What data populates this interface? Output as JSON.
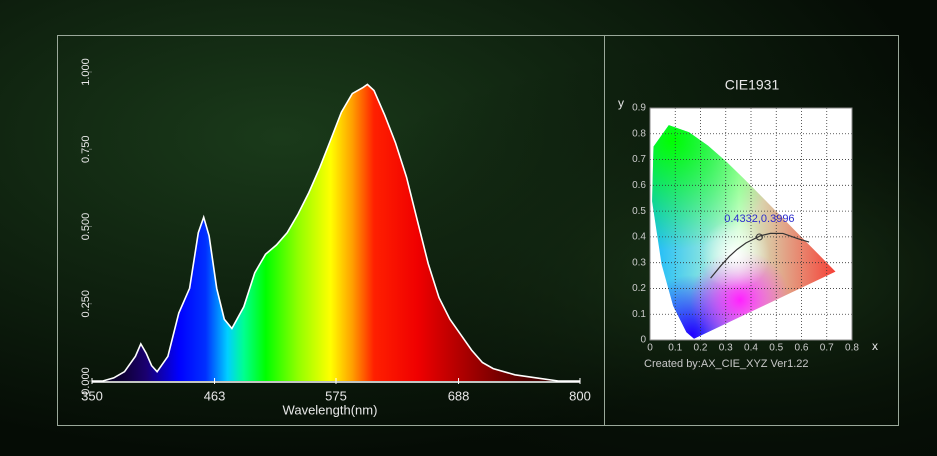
{
  "chart_data": [
    {
      "type": "area",
      "x_label": "Wavelength(nm)",
      "x": [
        350,
        360,
        370,
        380,
        390,
        395,
        400,
        405,
        410,
        420,
        430,
        440,
        448,
        453,
        458,
        465,
        472,
        479,
        490,
        500,
        510,
        520,
        530,
        540,
        550,
        560,
        570,
        580,
        590,
        600,
        604,
        610,
        620,
        630,
        640,
        650,
        660,
        670,
        680,
        690,
        700,
        710,
        720,
        740,
        760,
        780,
        800
      ],
      "values": [
        0.0,
        0.0,
        0.01,
        0.03,
        0.08,
        0.12,
        0.09,
        0.05,
        0.03,
        0.08,
        0.22,
        0.3,
        0.48,
        0.53,
        0.47,
        0.3,
        0.2,
        0.17,
        0.24,
        0.35,
        0.41,
        0.44,
        0.48,
        0.54,
        0.61,
        0.69,
        0.78,
        0.87,
        0.93,
        0.95,
        0.96,
        0.94,
        0.86,
        0.77,
        0.66,
        0.52,
        0.38,
        0.27,
        0.2,
        0.15,
        0.1,
        0.06,
        0.04,
        0.02,
        0.01,
        0.0,
        0.0
      ],
      "color": "#ffffff",
      "xlim": [
        350,
        800
      ],
      "xticks": [
        350,
        463,
        575,
        688,
        800
      ],
      "ylim": [
        0,
        1
      ],
      "yticks": [
        {
          "value": 0,
          "label": "0.000"
        },
        {
          "value": 0.25,
          "label": "0.250"
        },
        {
          "value": 0.5,
          "label": "0.500"
        },
        {
          "value": 0.75,
          "label": "0.750"
        },
        {
          "value": 1,
          "label": "1.000"
        }
      ]
    },
    {
      "type": "chromaticity",
      "title": "CIE1931",
      "x_label": "x",
      "y_label": "y",
      "footer": "Created by:AX_CIE_XYZ Ver1.22",
      "xlim": [
        0,
        0.8
      ],
      "xticks": [
        0,
        0.1,
        0.2,
        0.3,
        0.4,
        0.5,
        0.6,
        0.7,
        0.8
      ],
      "ylim": [
        0,
        0.9
      ],
      "yticks": [
        0,
        0.1,
        0.2,
        0.3,
        0.4,
        0.5,
        0.6,
        0.7,
        0.8,
        0.9
      ],
      "grid": true,
      "curve": {
        "color": "#333333",
        "x": [
          0.24,
          0.2807,
          0.3135,
          0.3451,
          0.3805,
          0.4369,
          0.477,
          0.5267,
          0.5857,
          0.63
        ],
        "y": [
          0.24,
          0.2883,
          0.3237,
          0.3516,
          0.3768,
          0.4041,
          0.4137,
          0.4133,
          0.3931,
          0.38
        ]
      },
      "point": {
        "x": 0.4332,
        "y": 0.3996,
        "label": "0.4332,0.3996",
        "color": "#2a2acc"
      }
    }
  ]
}
